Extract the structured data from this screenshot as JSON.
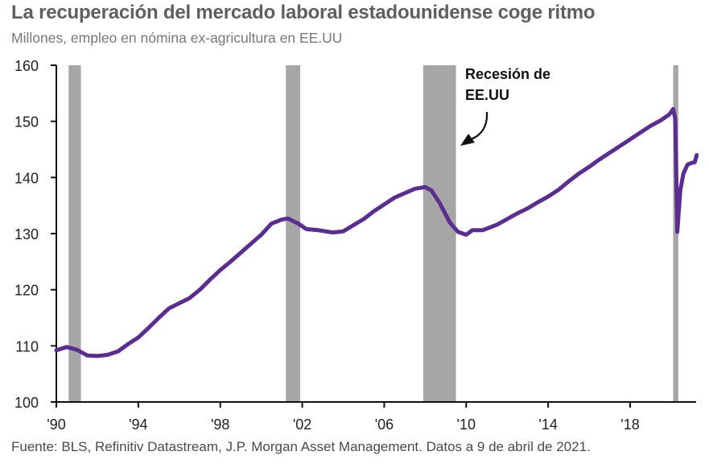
{
  "header": {
    "title": "La recuperación del mercado laboral estadounidense coge ritmo",
    "subtitle": "Millones, empleo en nómina ex-agricultura en EE.UU"
  },
  "footer": {
    "source": "Fuente: BLS, Refinitiv Datastream, J.P. Morgan Asset Management. Datos a 9 de abril de 2021."
  },
  "colors": {
    "line": "#5b2d91",
    "recession": "#a6a6a6",
    "axis": "#111111"
  },
  "chart_data": {
    "type": "line",
    "title": "La recuperación del mercado laboral estadounidense coge ritmo",
    "subtitle": "Millones, empleo en nómina ex-agricultura en EE.UU",
    "xlabel": "",
    "ylabel": "",
    "xlim": [
      1990,
      2021.5
    ],
    "ylim": [
      100,
      160
    ],
    "grid": false,
    "legend": "none",
    "x_ticks": [
      1990,
      1994,
      1998,
      2002,
      2006,
      2010,
      2014,
      2018
    ],
    "x_tick_labels": [
      "'90",
      "'94",
      "'98",
      "'02",
      "'06",
      "'10",
      "'14",
      "'18"
    ],
    "y_ticks": [
      100,
      110,
      120,
      130,
      140,
      150,
      160
    ],
    "y_tick_labels": [
      "100",
      "110",
      "120",
      "130",
      "140",
      "150",
      "160"
    ],
    "annotation": {
      "lines": [
        "Recesión de",
        "EE.UU"
      ],
      "points_to": "2007-2009 recession"
    },
    "recessions": [
      {
        "start": 1990.6,
        "end": 1991.2
      },
      {
        "start": 2001.2,
        "end": 2001.9
      },
      {
        "start": 2007.9,
        "end": 2009.5
      },
      {
        "start": 2020.1,
        "end": 2020.35
      }
    ],
    "series": [
      {
        "name": "Empleo en nómina ex-agricultura (millones)",
        "x": [
          1990.0,
          1990.5,
          1991.0,
          1991.5,
          1992.0,
          1992.5,
          1993.0,
          1993.5,
          1994.0,
          1994.5,
          1995.0,
          1995.5,
          1996.0,
          1996.5,
          1997.0,
          1997.5,
          1998.0,
          1998.5,
          1999.0,
          1999.5,
          2000.0,
          2000.5,
          2001.0,
          2001.3,
          2001.8,
          2002.2,
          2002.8,
          2003.5,
          2004.0,
          2004.5,
          2005.0,
          2005.5,
          2006.0,
          2006.5,
          2007.0,
          2007.5,
          2008.0,
          2008.3,
          2008.7,
          2009.2,
          2009.6,
          2010.0,
          2010.3,
          2010.8,
          2011.5,
          2012.0,
          2012.5,
          2013.0,
          2013.5,
          2014.0,
          2014.5,
          2015.0,
          2015.5,
          2016.0,
          2016.5,
          2017.0,
          2017.5,
          2018.0,
          2018.5,
          2019.0,
          2019.5,
          2019.9,
          2020.1,
          2020.2,
          2020.3,
          2020.45,
          2020.6,
          2020.8,
          2021.0,
          2021.15,
          2021.25
        ],
        "values": [
          109.2,
          109.8,
          109.3,
          108.3,
          108.2,
          108.4,
          109.0,
          110.3,
          111.5,
          113.2,
          115.0,
          116.7,
          117.6,
          118.5,
          120.0,
          121.8,
          123.5,
          125.0,
          126.6,
          128.2,
          129.8,
          131.8,
          132.5,
          132.7,
          131.8,
          130.8,
          130.6,
          130.2,
          130.4,
          131.5,
          132.6,
          134.0,
          135.2,
          136.4,
          137.2,
          138.0,
          138.3,
          137.7,
          135.5,
          132.0,
          130.3,
          129.8,
          130.6,
          130.6,
          131.6,
          132.6,
          133.6,
          134.5,
          135.6,
          136.6,
          137.8,
          139.3,
          140.7,
          141.9,
          143.2,
          144.4,
          145.6,
          146.8,
          148.0,
          149.2,
          150.2,
          151.2,
          152.2,
          150.5,
          130.3,
          137.8,
          140.7,
          142.3,
          142.6,
          142.7,
          144.0
        ]
      }
    ]
  }
}
